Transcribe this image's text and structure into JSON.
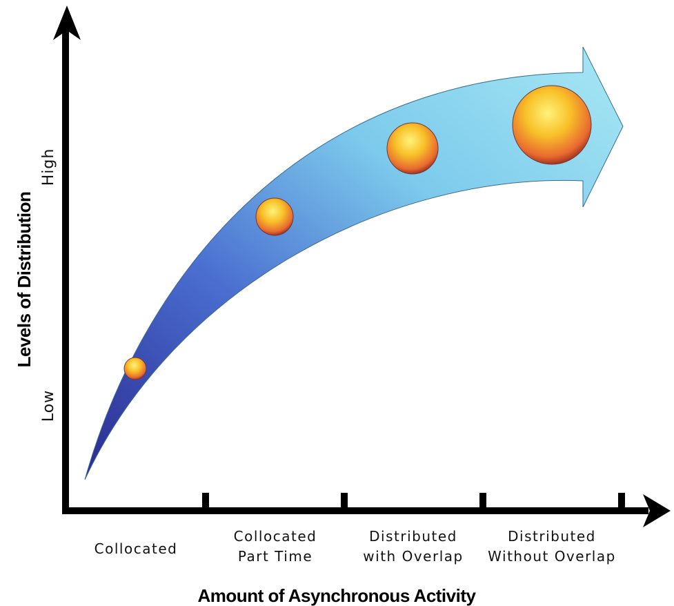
{
  "y_axis": {
    "title": "Levels of Distribution",
    "low": "Low",
    "high": "High"
  },
  "x_axis": {
    "title": "Amount of Asynchronous Activity",
    "categories": [
      {
        "lines": [
          "Collocated"
        ]
      },
      {
        "lines": [
          "Collocated",
          "Part Time"
        ]
      },
      {
        "lines": [
          "Distributed",
          "with Overlap"
        ]
      },
      {
        "lines": [
          "Distributed",
          "Without Overlap"
        ]
      }
    ]
  }
}
